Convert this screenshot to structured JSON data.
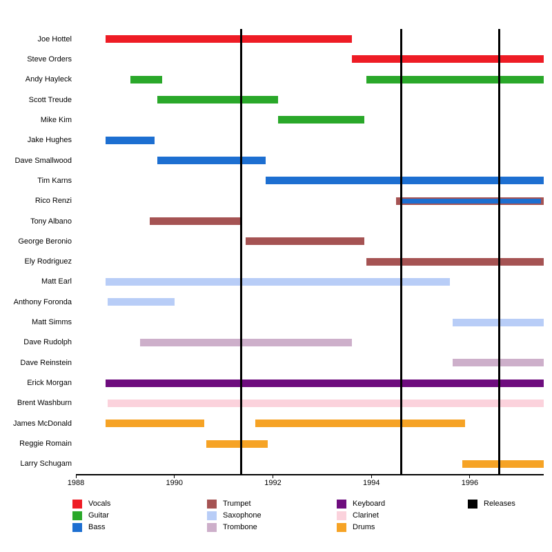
{
  "chart_data": {
    "type": "timeline",
    "title": "",
    "x_axis": {
      "min": 1988,
      "max": 1997.5,
      "tick_values": [
        1988,
        1990,
        1992,
        1994,
        1996
      ],
      "tick_labels": [
        "1988",
        "1990",
        "1992",
        "1994",
        "1996"
      ]
    },
    "releases": [
      1991.35,
      1994.6,
      1996.6
    ],
    "colors": {
      "Vocals": "#ee1c25",
      "Guitar": "#2aa82a",
      "Bass": "#1d6fd1",
      "Trumpet": "#a55353",
      "Saxophone": "#b8cdf7",
      "Trombone": "#cdafca",
      "Keyboard": "#6e0d7e",
      "Clarinet": "#fbd2dc",
      "Drums": "#f6a325",
      "Releases": "#000000"
    },
    "members": [
      {
        "name": "Joe Hottel",
        "bars": [
          {
            "instrument": "Vocals",
            "start": 1988.6,
            "end": 1993.6
          }
        ]
      },
      {
        "name": "Steve Orders",
        "bars": [
          {
            "instrument": "Vocals",
            "start": 1993.6,
            "end": 1997.5
          }
        ]
      },
      {
        "name": "Andy Hayleck",
        "bars": [
          {
            "instrument": "Guitar",
            "start": 1989.1,
            "end": 1989.75
          },
          {
            "instrument": "Guitar",
            "start": 1993.9,
            "end": 1997.5
          }
        ]
      },
      {
        "name": "Scott Treude",
        "bars": [
          {
            "instrument": "Guitar",
            "start": 1989.65,
            "end": 1992.1
          }
        ]
      },
      {
        "name": "Mike Kim",
        "bars": [
          {
            "instrument": "Guitar",
            "start": 1992.1,
            "end": 1993.85
          }
        ]
      },
      {
        "name": "Jake Hughes",
        "bars": [
          {
            "instrument": "Bass",
            "start": 1988.6,
            "end": 1989.6
          }
        ]
      },
      {
        "name": "Dave Smallwood",
        "bars": [
          {
            "instrument": "Bass",
            "start": 1989.65,
            "end": 1991.85
          }
        ]
      },
      {
        "name": "Tim Karns",
        "bars": [
          {
            "instrument": "Bass",
            "start": 1991.85,
            "end": 1997.5
          }
        ]
      },
      {
        "name": "Rico Renzi",
        "bars": [
          {
            "instrument": "Trumpet",
            "start": 1994.5,
            "end": 1997.5
          },
          {
            "instrument": "Bass",
            "start": 1994.6,
            "end": 1997.45,
            "inset": true
          }
        ]
      },
      {
        "name": "Tony Albano",
        "bars": [
          {
            "instrument": "Trumpet",
            "start": 1989.5,
            "end": 1991.35
          }
        ]
      },
      {
        "name": "George Beronio",
        "bars": [
          {
            "instrument": "Trumpet",
            "start": 1991.45,
            "end": 1993.85
          }
        ]
      },
      {
        "name": "Ely Rodriguez",
        "bars": [
          {
            "instrument": "Trumpet",
            "start": 1993.9,
            "end": 1997.5
          }
        ]
      },
      {
        "name": "Matt Earl",
        "bars": [
          {
            "instrument": "Saxophone",
            "start": 1988.6,
            "end": 1995.6
          }
        ]
      },
      {
        "name": "Anthony Foronda",
        "bars": [
          {
            "instrument": "Saxophone",
            "start": 1988.65,
            "end": 1990.0
          }
        ]
      },
      {
        "name": "Matt Simms",
        "bars": [
          {
            "instrument": "Saxophone",
            "start": 1995.65,
            "end": 1997.5
          }
        ]
      },
      {
        "name": "Dave Rudolph",
        "bars": [
          {
            "instrument": "Trombone",
            "start": 1989.3,
            "end": 1993.6
          }
        ]
      },
      {
        "name": "Dave Reinstein",
        "bars": [
          {
            "instrument": "Trombone",
            "start": 1995.65,
            "end": 1997.5
          }
        ]
      },
      {
        "name": "Erick Morgan",
        "bars": [
          {
            "instrument": "Keyboard",
            "start": 1988.6,
            "end": 1997.5
          }
        ]
      },
      {
        "name": "Brent Washburn",
        "bars": [
          {
            "instrument": "Clarinet",
            "start": 1988.65,
            "end": 1997.5
          }
        ]
      },
      {
        "name": "James McDonald",
        "bars": [
          {
            "instrument": "Drums",
            "start": 1988.6,
            "end": 1990.6
          },
          {
            "instrument": "Drums",
            "start": 1991.65,
            "end": 1995.9
          }
        ]
      },
      {
        "name": "Reggie Romain",
        "bars": [
          {
            "instrument": "Drums",
            "start": 1990.65,
            "end": 1991.9
          }
        ]
      },
      {
        "name": "Larry Schugam",
        "bars": [
          {
            "instrument": "Drums",
            "start": 1995.85,
            "end": 1997.5
          }
        ]
      }
    ],
    "legend_columns": [
      [
        "Vocals",
        "Guitar",
        "Bass"
      ],
      [
        "Trumpet",
        "Saxophone",
        "Trombone"
      ],
      [
        "Keyboard",
        "Clarinet",
        "Drums"
      ],
      [
        "Releases"
      ]
    ]
  }
}
